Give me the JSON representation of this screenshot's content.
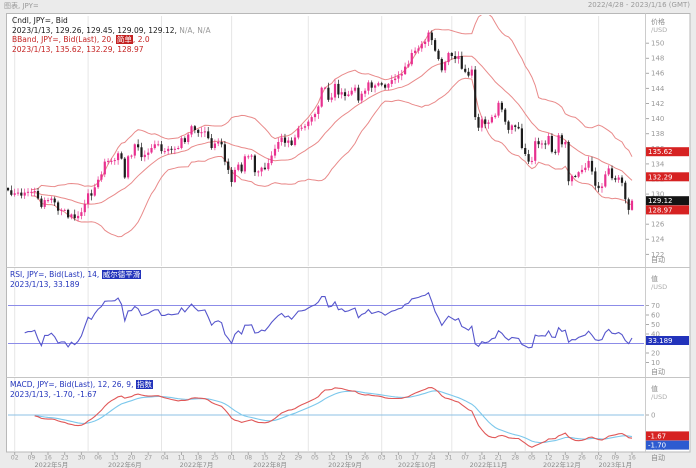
{
  "window": {
    "title": "图表, JPY=",
    "date_range": "2022/4/28 - 2023/1/16 (GMT)"
  },
  "colors": {
    "candle_up": "#e8308f",
    "candle_down": "#1c1c1c",
    "bollinger": "#e98a8a",
    "rsi_line": "#5656cc",
    "rsi_level_line": "#8c8ce8",
    "macd_line": "#e05858",
    "macd_signal_line": "#7cc8ec",
    "macd_zero_line": "#8cc0e4",
    "badge_red": "#d62222",
    "badge_black": "#141414",
    "badge_blue": "#2233bb",
    "badge_royal": "#2d5bd0",
    "axis_text": "#9a9a9a",
    "grid": "#e6e6e6",
    "frame": "#b8b8b8"
  },
  "panels": {
    "price": {
      "legend": {
        "line1": "Cndl, JPY=, Bid",
        "line2_main": "2023/1/13, 129.26, 129.45, 129.09, 129.12,",
        "line2_na": " N/A, N/A",
        "line3_pre": "BBand, JPY=, Bid(Last), 20, ",
        "line3_hl": "简单",
        "line3_post": ", 2.0",
        "line4": "2023/1/13, 135.62, 132.29, 128.97"
      },
      "axis": {
        "title": "价格",
        "unit": "/USD",
        "auto": "自动",
        "ticks": [
          150,
          148,
          146,
          144,
          142,
          140,
          138,
          136,
          134,
          132,
          130,
          128,
          126,
          124,
          122
        ]
      },
      "badges": [
        {
          "text": "135.62",
          "value": 135.62,
          "bg": "red"
        },
        {
          "text": "132.29",
          "value": 132.29,
          "bg": "red"
        },
        {
          "text": "129.12",
          "value": 129.12,
          "bg": "black"
        },
        {
          "text": "128.97",
          "value": 128.97,
          "bg": "red"
        }
      ]
    },
    "rsi": {
      "legend": {
        "line1_pre": "RSI, JPY=, Bid(Last), 14, ",
        "line1_hl": "威尔德平滑",
        "line2": "2023/1/13, 33.189"
      },
      "axis": {
        "title": "值",
        "unit": "/USD",
        "auto": "自动",
        "ticks": [
          70,
          60,
          50,
          40,
          20,
          10
        ]
      },
      "levels": [
        70,
        30
      ],
      "badges": [
        {
          "text": "33.189",
          "value": 33.189,
          "bg": "blue"
        }
      ]
    },
    "macd": {
      "legend": {
        "line1_pre": "MACD, JPY=, Bid(Last), 12, 26, 9, ",
        "line1_hl": "指数",
        "line2": "2023/1/13, -1.70, -1.67"
      },
      "axis": {
        "title": "值",
        "unit": "/USD",
        "auto": "自动",
        "ticks": [
          0
        ]
      },
      "badges": [
        {
          "text": "-1.67",
          "value": -1.67,
          "bg": "red"
        },
        {
          "text": "-1.70",
          "value": -1.7,
          "bg": "royal"
        }
      ]
    }
  },
  "x_axis": {
    "auto": "自动",
    "week_labels": [
      "02",
      "09",
      "16",
      "23",
      "30",
      "06",
      "13",
      "20",
      "27",
      "04",
      "11",
      "18",
      "25",
      "01",
      "08",
      "15",
      "22",
      "29",
      "05",
      "12",
      "19",
      "26",
      "03",
      "10",
      "17",
      "24",
      "31",
      "07",
      "14",
      "21",
      "28",
      "05",
      "12",
      "19",
      "26",
      "02",
      "09",
      "16"
    ],
    "months": [
      {
        "label": "2022年5月",
        "i": 2
      },
      {
        "label": "2022年6月",
        "i": 24
      },
      {
        "label": "2022年7月",
        "i": 46
      },
      {
        "label": "2022年8月",
        "i": 67
      },
      {
        "label": "2022年9月",
        "i": 90
      },
      {
        "label": "2022年10月",
        "i": 112
      },
      {
        "label": "2022年11月",
        "i": 133
      },
      {
        "label": "2022年12月",
        "i": 155
      },
      {
        "label": "2023年1月",
        "i": 177
      }
    ]
  },
  "chart_data": {
    "type": "candlestick",
    "symbol": "JPY=",
    "field": "Bid",
    "date_range": "2022/4/28 - 2023/1/16 (GMT)",
    "y_range": [
      120.6,
      153.6
    ],
    "indicators": {
      "bband": {
        "period": 20,
        "ma": "简单",
        "stdev": 2.0,
        "last": [
          135.62,
          132.29,
          128.97
        ]
      },
      "rsi": {
        "period": 14,
        "smoothing": "威尔德平滑",
        "levels": [
          30,
          70
        ],
        "last": 33.189
      },
      "macd": {
        "fast": 12,
        "slow": 26,
        "signal": 9,
        "ma": "指数",
        "last": [
          -1.7,
          -1.67
        ]
      }
    },
    "last_candle": {
      "date": "2023/1/13",
      "open": 129.26,
      "high": 129.45,
      "low": 129.09,
      "close": 129.12
    },
    "closes": [
      130.5,
      129.9,
      130.1,
      130.2,
      129.8,
      130.2,
      130.3,
      130.3,
      130.4,
      129.4,
      128.3,
      129.2,
      129.2,
      129.4,
      128.9,
      127.8,
      127.9,
      127.9,
      126.9,
      127.3,
      126.8,
      127.1,
      127.6,
      128.7,
      130.1,
      129.8,
      130.9,
      131.9,
      132.6,
      134.3,
      134.4,
      134.4,
      134.5,
      135.4,
      134.7,
      132.2,
      135.0,
      135.1,
      136.6,
      136.2,
      134.9,
      135.2,
      135.5,
      136.1,
      136.6,
      136.6,
      135.7,
      135.7,
      136.0,
      135.9,
      136.0,
      136.1,
      137.4,
      136.9,
      137.9,
      139.0,
      138.5,
      138.1,
      138.2,
      138.3,
      137.4,
      136.1,
      136.7,
      136.9,
      136.6,
      134.3,
      133.2,
      131.6,
      133.2,
      133.9,
      133.0,
      135.0,
      135.0,
      135.1,
      132.9,
      133.0,
      133.5,
      133.3,
      134.1,
      135.1,
      136.0,
      136.9,
      137.5,
      136.8,
      137.1,
      136.5,
      137.5,
      138.7,
      138.8,
      139.0,
      139.6,
      140.2,
      140.6,
      141.6,
      144.1,
      144.1,
      142.5,
      142.8,
      144.6,
      143.2,
      143.5,
      143.0,
      143.2,
      143.7,
      144.1,
      142.4,
      143.3,
      143.7,
      144.8,
      144.1,
      144.4,
      144.7,
      144.5,
      144.1,
      144.6,
      145.1,
      145.3,
      145.7,
      145.9,
      146.9,
      147.2,
      148.7,
      149.0,
      149.3,
      149.9,
      150.2,
      151.4,
      150.4,
      149.0,
      147.9,
      146.4,
      147.5,
      148.7,
      148.3,
      147.9,
      148.3,
      146.6,
      146.2,
      145.7,
      146.5,
      140.2,
      138.8,
      139.9,
      139.3,
      139.5,
      140.2,
      140.4,
      142.1,
      141.2,
      139.6,
      138.5,
      139.1,
      138.9,
      138.7,
      136.1,
      135.3,
      134.3,
      134.4,
      137.0,
      136.6,
      136.7,
      136.6,
      137.7,
      135.6,
      135.5,
      137.8,
      136.6,
      136.9,
      131.7,
      132.4,
      132.3,
      132.9,
      133.2,
      133.5,
      134.4,
      133.0,
      131.1,
      130.8,
      131.0,
      132.6,
      133.4,
      132.1,
      131.9,
      132.2,
      131.5,
      129.3,
      127.9,
      129.12
    ]
  }
}
